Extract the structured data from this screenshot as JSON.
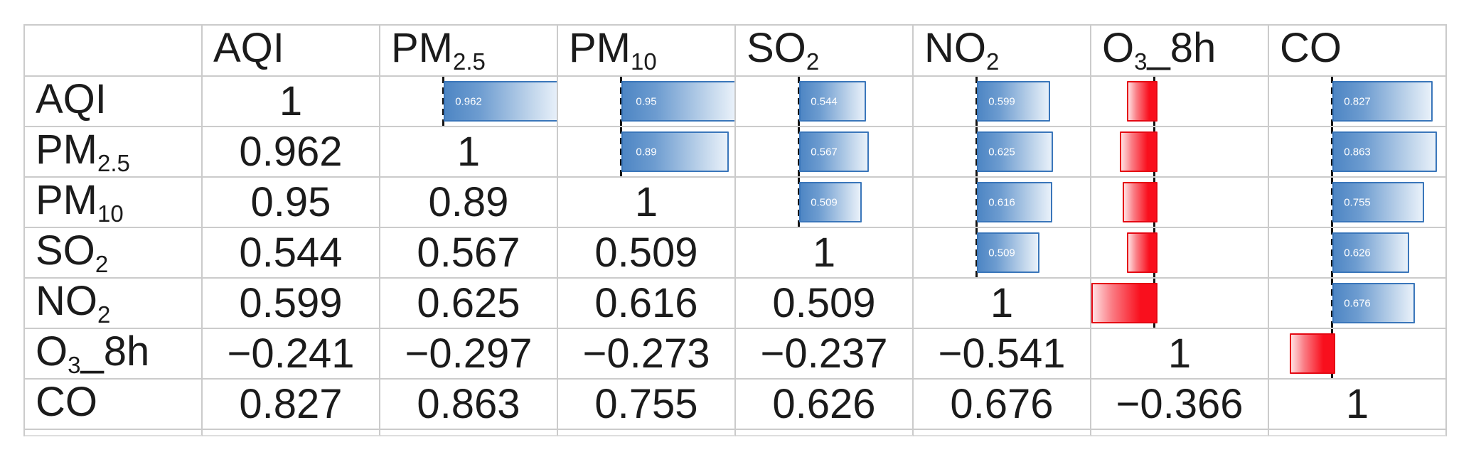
{
  "table": {
    "corner": "",
    "columns": [
      {
        "key": "aqi",
        "pre": "AQI",
        "sub": "",
        "post": ""
      },
      {
        "key": "pm2.5",
        "pre": "PM",
        "sub": "2.5",
        "post": ""
      },
      {
        "key": "pm10",
        "pre": "PM",
        "sub": "10",
        "post": ""
      },
      {
        "key": "so2",
        "pre": "SO",
        "sub": "2",
        "post": ""
      },
      {
        "key": "no2",
        "pre": "NO",
        "sub": "2",
        "post": ""
      },
      {
        "key": "o3_8h",
        "pre": "O",
        "sub": "3",
        "post": "_8h"
      },
      {
        "key": "co",
        "pre": "CO",
        "sub": "",
        "post": ""
      }
    ],
    "rows": [
      {
        "key": "aqi",
        "pre": "AQI",
        "sub": "",
        "post": "",
        "cells": [
          {
            "type": "diagonal",
            "text": "1"
          },
          {
            "type": "bar",
            "value": 0.962,
            "text": "0.962"
          },
          {
            "type": "bar",
            "value": 0.95,
            "text": "0.95"
          },
          {
            "type": "bar",
            "value": 0.544,
            "text": "0.544"
          },
          {
            "type": "bar",
            "value": 0.599,
            "text": "0.599"
          },
          {
            "type": "bar",
            "value": -0.241,
            "text": "−0.241"
          },
          {
            "type": "bar",
            "value": 0.827,
            "text": "0.827"
          }
        ]
      },
      {
        "key": "pm2.5",
        "pre": "PM",
        "sub": "2.5",
        "post": "",
        "cells": [
          {
            "type": "number",
            "text": "0.962"
          },
          {
            "type": "diagonal",
            "text": "1"
          },
          {
            "type": "bar",
            "value": 0.89,
            "text": "0.89"
          },
          {
            "type": "bar",
            "value": 0.567,
            "text": "0.567"
          },
          {
            "type": "bar",
            "value": 0.625,
            "text": "0.625"
          },
          {
            "type": "bar",
            "value": -0.297,
            "text": "−0.297"
          },
          {
            "type": "bar",
            "value": 0.863,
            "text": "0.863"
          }
        ]
      },
      {
        "key": "pm10",
        "pre": "PM",
        "sub": "10",
        "post": "",
        "cells": [
          {
            "type": "number",
            "text": "0.95"
          },
          {
            "type": "number",
            "text": "0.89"
          },
          {
            "type": "diagonal",
            "text": "1"
          },
          {
            "type": "bar",
            "value": 0.509,
            "text": "0.509"
          },
          {
            "type": "bar",
            "value": 0.616,
            "text": "0.616"
          },
          {
            "type": "bar",
            "value": -0.273,
            "text": "−0.273"
          },
          {
            "type": "bar",
            "value": 0.755,
            "text": "0.755"
          }
        ]
      },
      {
        "key": "so2",
        "pre": "SO",
        "sub": "2",
        "post": "",
        "cells": [
          {
            "type": "number",
            "text": "0.544"
          },
          {
            "type": "number",
            "text": "0.567"
          },
          {
            "type": "number",
            "text": "0.509"
          },
          {
            "type": "diagonal",
            "text": "1"
          },
          {
            "type": "bar",
            "value": 0.509,
            "text": "0.509"
          },
          {
            "type": "bar",
            "value": -0.237,
            "text": "−0.237"
          },
          {
            "type": "bar",
            "value": 0.626,
            "text": "0.626"
          }
        ]
      },
      {
        "key": "no2",
        "pre": "NO",
        "sub": "2",
        "post": "",
        "cells": [
          {
            "type": "number",
            "text": "0.599"
          },
          {
            "type": "number",
            "text": "0.625"
          },
          {
            "type": "number",
            "text": "0.616"
          },
          {
            "type": "number",
            "text": "0.509"
          },
          {
            "type": "diagonal",
            "text": "1"
          },
          {
            "type": "bar",
            "value": -0.541,
            "text": "−0.541"
          },
          {
            "type": "bar",
            "value": 0.676,
            "text": "0.676"
          }
        ]
      },
      {
        "key": "o3_8h",
        "pre": "O",
        "sub": "3",
        "post": "_8h",
        "cells": [
          {
            "type": "number",
            "text": "−0.241"
          },
          {
            "type": "number",
            "text": "−0.297"
          },
          {
            "type": "number",
            "text": "−0.273"
          },
          {
            "type": "number",
            "text": "−0.237"
          },
          {
            "type": "number",
            "text": "−0.541"
          },
          {
            "type": "diagonal",
            "text": "1"
          },
          {
            "type": "bar",
            "value": -0.366,
            "text": "−0.366"
          }
        ]
      },
      {
        "key": "co",
        "pre": "CO",
        "sub": "",
        "post": "",
        "cells": [
          {
            "type": "number",
            "text": "0.827"
          },
          {
            "type": "number",
            "text": "0.863"
          },
          {
            "type": "number",
            "text": "0.755"
          },
          {
            "type": "number",
            "text": "0.626"
          },
          {
            "type": "number",
            "text": "0.676"
          },
          {
            "type": "number",
            "text": "−0.366"
          },
          {
            "type": "diagonal",
            "text": "1"
          }
        ]
      }
    ],
    "layout": {
      "axis_fraction": 0.36,
      "bar_width_fraction_per_unit": 0.6653
    },
    "colors": {
      "gridline": "#cbcbcb",
      "text": "#1b1b1b",
      "bar_positive_fill_start": "#4e86c4",
      "bar_positive_fill_end": "#e9f1fa",
      "bar_positive_border": "#3a76ba",
      "bar_negative_fill_start": "#f90f1d",
      "bar_negative_fill_end": "#ffe0e2",
      "bar_negative_border": "#e40813",
      "bar_axis": "#151515",
      "bar_hidden_value_text": "#ffffff"
    }
  }
}
